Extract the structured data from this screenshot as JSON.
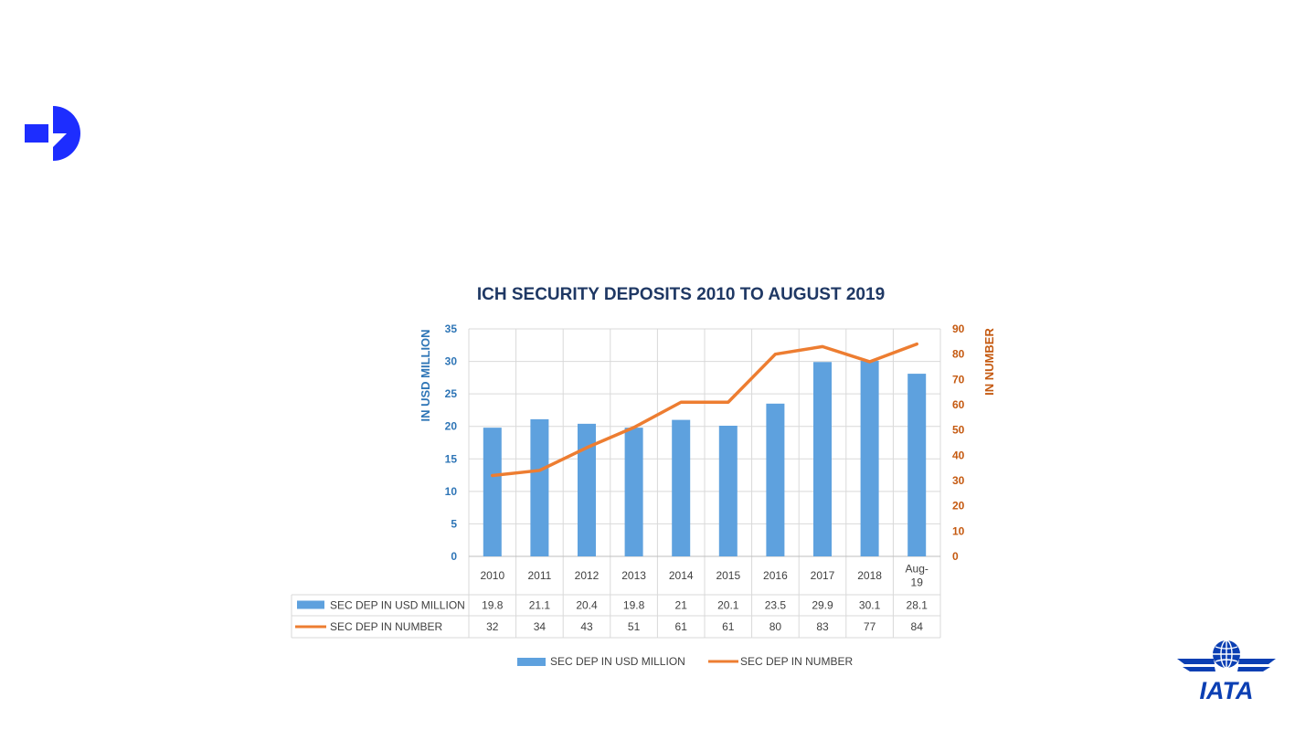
{
  "chart_data": {
    "type": "bar",
    "title": "ICH SECURITY DEPOSITS 2010 TO AUGUST 2019",
    "categories": [
      "2010",
      "2011",
      "2012",
      "2013",
      "2014",
      "2015",
      "2016",
      "2017",
      "2018",
      "Aug-19"
    ],
    "category_lines": [
      [
        "2010"
      ],
      [
        "2011"
      ],
      [
        "2012"
      ],
      [
        "2013"
      ],
      [
        "2014"
      ],
      [
        "2015"
      ],
      [
        "2016"
      ],
      [
        "2017"
      ],
      [
        "2018"
      ],
      [
        "Aug-",
        "19"
      ]
    ],
    "series": [
      {
        "name": "SEC DEP IN USD MILLION",
        "type": "bar",
        "axis": "left",
        "color": "#5ea1de",
        "values": [
          19.8,
          21.1,
          20.4,
          19.8,
          21,
          20.1,
          23.5,
          29.9,
          30.1,
          28.1
        ]
      },
      {
        "name": "SEC DEP IN NUMBER",
        "type": "line",
        "axis": "right",
        "color": "#ed7d31",
        "values": [
          32,
          34,
          43,
          51,
          61,
          61,
          80,
          83,
          77,
          84
        ]
      }
    ],
    "ylabel": "IN USD MILLION",
    "y2label": "IN NUMBER",
    "ylim": [
      0,
      35
    ],
    "y2lim": [
      0,
      90
    ],
    "yticks": [
      0,
      5,
      10,
      15,
      20,
      25,
      30,
      35
    ],
    "y2ticks": [
      0,
      10,
      20,
      30,
      40,
      50,
      60,
      70,
      80,
      90
    ],
    "left_axis_color": "#2e75b6",
    "right_axis_color": "#c55a11",
    "grid": true,
    "data_table": true,
    "legend": "bottom"
  }
}
